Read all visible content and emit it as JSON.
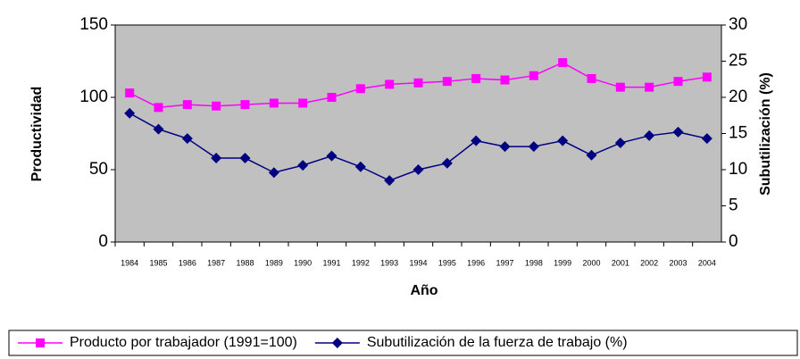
{
  "chart_data": {
    "type": "line",
    "x_label": "Año",
    "y_label": "Productividad",
    "y2_label": "Subutilización (%)",
    "categories": [
      "1984",
      "1985",
      "1986",
      "1987",
      "1988",
      "1989",
      "1990",
      "1991",
      "1992",
      "1993",
      "1994",
      "1995",
      "1996",
      "1997",
      "1998",
      "1999",
      "2000",
      "2001",
      "2002",
      "2003",
      "2004"
    ],
    "series": [
      {
        "name": "Producto por trabajador  (1991=100)",
        "color": "#ff00ff",
        "marker": "square",
        "values": [
          103,
          93,
          95,
          94,
          95,
          96,
          96,
          100,
          106,
          109,
          110,
          111,
          113,
          112,
          115,
          124,
          113,
          107,
          107,
          111,
          114
        ]
      },
      {
        "name": "Subutilización de la fuerza de trabajo (%)",
        "color": "#000080",
        "marker": "diamond",
        "axis": "y2",
        "values": [
          17.8,
          15.6,
          14.3,
          11.6,
          11.6,
          9.6,
          10.6,
          11.9,
          10.4,
          8.5,
          10.0,
          10.9,
          14.0,
          13.2,
          13.2,
          14.0,
          12.0,
          13.7,
          14.7,
          15.2,
          14.3
        ]
      }
    ],
    "ylim": [
      0,
      150
    ],
    "yticks": [
      0,
      50,
      100,
      150
    ],
    "y2lim": [
      0,
      30
    ],
    "y2ticks": [
      0,
      5,
      10,
      15,
      20,
      25,
      30
    ],
    "legend": "bottom",
    "grid": false,
    "plot_background": "#c0c0c0"
  }
}
